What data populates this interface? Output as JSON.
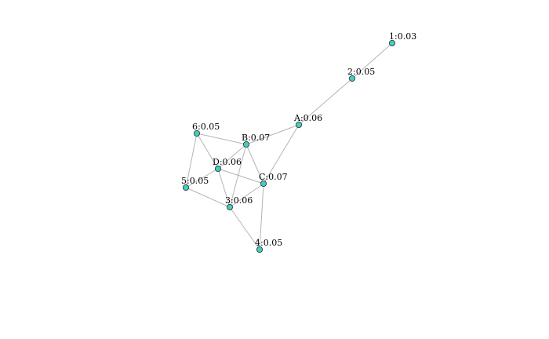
{
  "graph": {
    "node_color": "#40d0c0",
    "edge_color": "#b4b4b4",
    "nodes": [
      {
        "id": "1",
        "label": "1:0.03"
      },
      {
        "id": "2",
        "label": "2:0.05"
      },
      {
        "id": "A",
        "label": "A:0.06"
      },
      {
        "id": "6",
        "label": "6:0.05"
      },
      {
        "id": "B",
        "label": "B:0.07"
      },
      {
        "id": "D",
        "label": "D:0.06"
      },
      {
        "id": "C",
        "label": "C:0.07"
      },
      {
        "id": "5",
        "label": "5:0.05"
      },
      {
        "id": "3",
        "label": "3:0.06"
      },
      {
        "id": "4",
        "label": "4:0.05"
      }
    ],
    "edges": [
      [
        "1",
        "2"
      ],
      [
        "2",
        "A"
      ],
      [
        "A",
        "B"
      ],
      [
        "A",
        "C"
      ],
      [
        "6",
        "B"
      ],
      [
        "6",
        "D"
      ],
      [
        "6",
        "5"
      ],
      [
        "B",
        "D"
      ],
      [
        "B",
        "C"
      ],
      [
        "B",
        "3"
      ],
      [
        "D",
        "5"
      ],
      [
        "D",
        "3"
      ],
      [
        "D",
        "C"
      ],
      [
        "C",
        "3"
      ],
      [
        "C",
        "4"
      ],
      [
        "5",
        "3"
      ],
      [
        "3",
        "4"
      ]
    ]
  }
}
